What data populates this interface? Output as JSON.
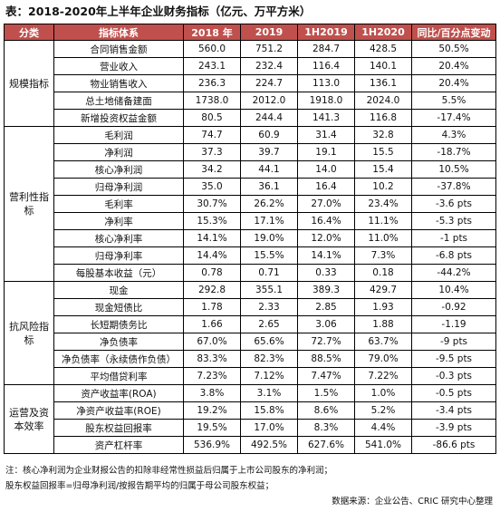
{
  "title": "表：2018-2020年上半年企业财务指标（亿元、万平方米）",
  "headers": [
    "分类",
    "指标体系",
    "2018 年",
    "2019",
    "1H2019",
    "1H2020",
    "同比/百分点变动"
  ],
  "groups": [
    {
      "category": "规模指标",
      "rows": [
        [
          "合同销售金额",
          "560.0",
          "751.2",
          "284.7",
          "428.5",
          "50.5%"
        ],
        [
          "营业收入",
          "243.1",
          "232.4",
          "116.4",
          "140.1",
          "20.4%"
        ],
        [
          "物业销售收入",
          "236.3",
          "224.7",
          "113.0",
          "136.1",
          "20.4%"
        ],
        [
          "总土地储备建面",
          "1738.0",
          "2012.0",
          "1918.0",
          "2024.0",
          "5.5%"
        ],
        [
          "新增投资权益金额",
          "80.5",
          "244.4",
          "141.3",
          "116.8",
          "-17.4%"
        ]
      ]
    },
    {
      "category": "营利性指标",
      "rows": [
        [
          "毛利润",
          "74.7",
          "60.9",
          "31.4",
          "32.8",
          "4.3%"
        ],
        [
          "净利润",
          "37.3",
          "39.7",
          "19.1",
          "15.5",
          "-18.7%"
        ],
        [
          "核心净利润",
          "34.2",
          "44.1",
          "14.0",
          "15.4",
          "10.5%"
        ],
        [
          "归母净利润",
          "35.0",
          "36.1",
          "16.4",
          "10.2",
          "-37.8%"
        ],
        [
          "毛利率",
          "30.7%",
          "26.2%",
          "27.0%",
          "23.4%",
          "-3.6 pts"
        ],
        [
          "净利率",
          "15.3%",
          "17.1%",
          "16.4%",
          "11.1%",
          "-5.3 pts"
        ],
        [
          "核心净利率",
          "14.1%",
          "19.0%",
          "12.0%",
          "11.0%",
          "-1 pts"
        ],
        [
          "归母净利率",
          "14.4%",
          "15.5%",
          "14.1%",
          "7.3%",
          "-6.8 pts"
        ],
        [
          "每股基本收益（元）",
          "0.78",
          "0.71",
          "0.33",
          "0.18",
          "-44.2%"
        ]
      ]
    },
    {
      "category": "抗风险指标",
      "rows": [
        [
          "现金",
          "292.8",
          "355.1",
          "389.3",
          "429.7",
          "10.4%"
        ],
        [
          "现金短债比",
          "1.78",
          "2.33",
          "2.85",
          "1.93",
          "-0.92"
        ],
        [
          "长短期债务比",
          "1.66",
          "2.65",
          "3.06",
          "1.88",
          "-1.19"
        ],
        [
          "净负债率",
          "67.0%",
          "65.6%",
          "72.7%",
          "63.7%",
          "-9 pts"
        ],
        [
          "净负债率（永续债作负债）",
          "83.3%",
          "82.3%",
          "88.5%",
          "79.0%",
          "-9.5 pts"
        ],
        [
          "平均借贷利率",
          "7.23%",
          "7.12%",
          "7.47%",
          "7.22%",
          "-0.3 pts"
        ]
      ]
    },
    {
      "category": "运营及资本效率",
      "rows": [
        [
          "资产收益率(ROA)",
          "3.8%",
          "3.1%",
          "1.5%",
          "1.0%",
          "-0.5 pts"
        ],
        [
          "净资产收益率(ROE)",
          "19.2%",
          "15.8%",
          "8.6%",
          "5.2%",
          "-3.4 pts"
        ],
        [
          "股东权益回报率",
          "19.5%",
          "17.0%",
          "8.3%",
          "4.4%",
          "-3.9 pts"
        ],
        [
          "资产杠杆率",
          "536.9%",
          "492.5%",
          "627.6%",
          "541.0%",
          "-86.6 pts"
        ]
      ]
    }
  ],
  "notes": [
    "注：核心净利润为企业财报公告的扣除非经常性损益后归属于上市公司股东的净利润；",
    "股东权益回报率=归母净利润/按报告期平均的归属于母公司股东权益；"
  ],
  "source": "数据来源：企业公告、CRIC 研究中心整理"
}
